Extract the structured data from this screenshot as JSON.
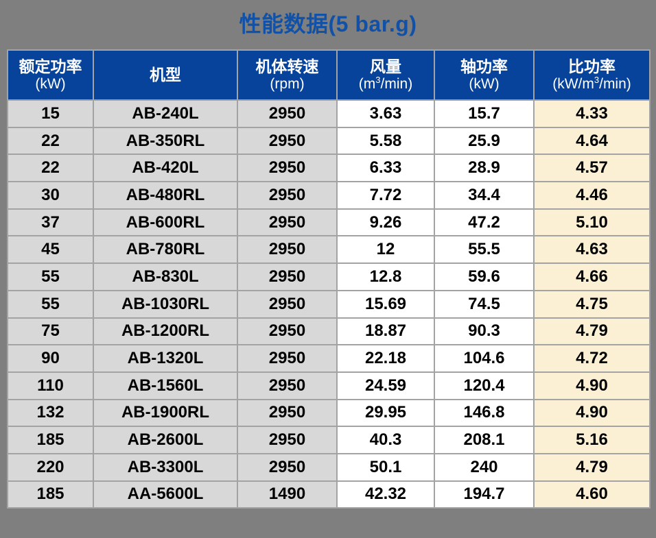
{
  "title": "性能数据(5 bar.g)",
  "colors": {
    "page_bg": "#7f7f7f",
    "title_text": "#1152a8",
    "header_bg": "#07439a",
    "header_text": "#ffffff",
    "cell_gray": "#d8d8d8",
    "cell_white": "#ffffff",
    "cell_cream": "#fbf0d3",
    "border": "#a3a3a3",
    "data_text": "#000000"
  },
  "header_columns": [
    {
      "key": "rated-power",
      "title": "额定功率",
      "unit_pre": "(kW)",
      "unit_sup": "",
      "unit_post": ""
    },
    {
      "key": "model",
      "title": "机型",
      "unit_pre": "",
      "unit_sup": "",
      "unit_post": ""
    },
    {
      "key": "speed",
      "title": "机体转速",
      "unit_pre": "(rpm)",
      "unit_sup": "",
      "unit_post": ""
    },
    {
      "key": "air-flow",
      "title": "风量",
      "unit_pre": "(m",
      "unit_sup": "3",
      "unit_post": "/min)"
    },
    {
      "key": "shaft-power",
      "title": "轴功率",
      "unit_pre": "(kW)",
      "unit_sup": "",
      "unit_post": ""
    },
    {
      "key": "specific-power",
      "title": "比功率",
      "unit_pre": "(kW/m",
      "unit_sup": "3",
      "unit_post": "/min)"
    }
  ],
  "chart_data": {
    "type": "table",
    "title": "性能数据(5 bar.g)",
    "columns": [
      "额定功率(kW)",
      "机型",
      "机体转速(rpm)",
      "风量(m³/min)",
      "轴功率(kW)",
      "比功率(kW/m³/min)"
    ],
    "rows": [
      [
        "15",
        "AB-240L",
        "2950",
        "3.63",
        "15.7",
        "4.33"
      ],
      [
        "22",
        "AB-350RL",
        "2950",
        "5.58",
        "25.9",
        "4.64"
      ],
      [
        "22",
        "AB-420L",
        "2950",
        "6.33",
        "28.9",
        "4.57"
      ],
      [
        "30",
        "AB-480RL",
        "2950",
        "7.72",
        "34.4",
        "4.46"
      ],
      [
        "37",
        "AB-600RL",
        "2950",
        "9.26",
        "47.2",
        "5.10"
      ],
      [
        "45",
        "AB-780RL",
        "2950",
        "12",
        "55.5",
        "4.63"
      ],
      [
        "55",
        "AB-830L",
        "2950",
        "12.8",
        "59.6",
        "4.66"
      ],
      [
        "55",
        "AB-1030RL",
        "2950",
        "15.69",
        "74.5",
        "4.75"
      ],
      [
        "75",
        "AB-1200RL",
        "2950",
        "18.87",
        "90.3",
        "4.79"
      ],
      [
        "90",
        "AB-1320L",
        "2950",
        "22.18",
        "104.6",
        "4.72"
      ],
      [
        "110",
        "AB-1560L",
        "2950",
        "24.59",
        "120.4",
        "4.90"
      ],
      [
        "132",
        "AB-1900RL",
        "2950",
        "29.95",
        "146.8",
        "4.90"
      ],
      [
        "185",
        "AB-2600L",
        "2950",
        "40.3",
        "208.1",
        "5.16"
      ],
      [
        "220",
        "AB-3300L",
        "2950",
        "50.1",
        "240",
        "4.79"
      ],
      [
        "185",
        "AA-5600L",
        "1490",
        "42.32",
        "194.7",
        "4.60"
      ]
    ]
  }
}
